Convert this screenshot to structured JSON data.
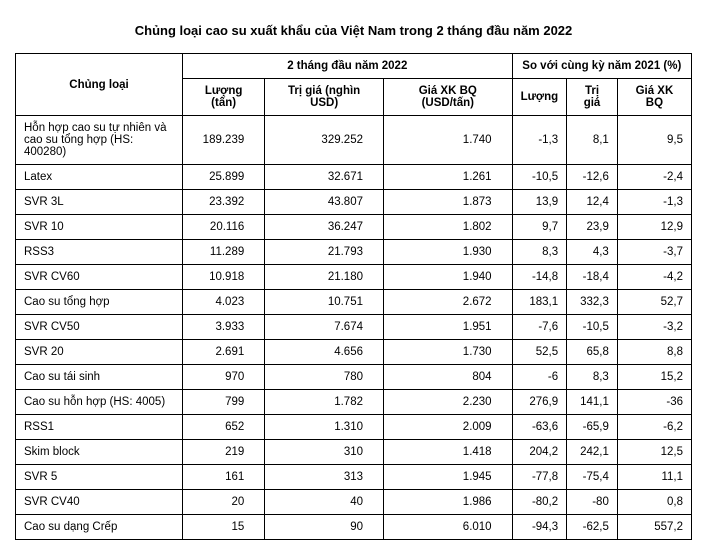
{
  "title": "Chủng loại cao su xuất khẩu của Việt Nam trong 2 tháng đầu năm 2022",
  "headerGroup1": "2 tháng đầu năm 2022",
  "headerGroup2": "So với cùng kỳ năm 2021 (%)",
  "colCategory": "Chủng loại",
  "colQty": "Lượng (tấn)",
  "colValue": "Trị giá (nghìn USD)",
  "colPrice": "Giá XK BQ (USD/tấn)",
  "colQty2": "Lượng",
  "colValue2": "Trị giá",
  "colPrice2": "Giá XK BQ",
  "rows": [
    {
      "name": "Hỗn hợp cao su tự nhiên và cao su tổng hợp (HS: 400280)",
      "qty": "189.239",
      "value": "329.252",
      "price": "1.740",
      "dQty": "-1,3",
      "dValue": "8,1",
      "dPrice": "9,5"
    },
    {
      "name": "Latex",
      "qty": "25.899",
      "value": "32.671",
      "price": "1.261",
      "dQty": "-10,5",
      "dValue": "-12,6",
      "dPrice": "-2,4"
    },
    {
      "name": "SVR 3L",
      "qty": "23.392",
      "value": "43.807",
      "price": "1.873",
      "dQty": "13,9",
      "dValue": "12,4",
      "dPrice": "-1,3"
    },
    {
      "name": "SVR 10",
      "qty": "20.116",
      "value": "36.247",
      "price": "1.802",
      "dQty": "9,7",
      "dValue": "23,9",
      "dPrice": "12,9"
    },
    {
      "name": "RSS3",
      "qty": "11.289",
      "value": "21.793",
      "price": "1.930",
      "dQty": "8,3",
      "dValue": "4,3",
      "dPrice": "-3,7"
    },
    {
      "name": "SVR CV60",
      "qty": "10.918",
      "value": "21.180",
      "price": "1.940",
      "dQty": "-14,8",
      "dValue": "-18,4",
      "dPrice": "-4,2"
    },
    {
      "name": "Cao su tổng hợp",
      "qty": "4.023",
      "value": "10.751",
      "price": "2.672",
      "dQty": "183,1",
      "dValue": "332,3",
      "dPrice": "52,7"
    },
    {
      "name": "SVR CV50",
      "qty": "3.933",
      "value": "7.674",
      "price": "1.951",
      "dQty": "-7,6",
      "dValue": "-10,5",
      "dPrice": "-3,2"
    },
    {
      "name": "SVR 20",
      "qty": "2.691",
      "value": "4.656",
      "price": "1.730",
      "dQty": "52,5",
      "dValue": "65,8",
      "dPrice": "8,8"
    },
    {
      "name": "Cao su tái sinh",
      "qty": "970",
      "value": "780",
      "price": "804",
      "dQty": "-6",
      "dValue": "8,3",
      "dPrice": "15,2"
    },
    {
      "name": "Cao su hỗn hợp (HS: 4005)",
      "qty": "799",
      "value": "1.782",
      "price": "2.230",
      "dQty": "276,9",
      "dValue": "141,1",
      "dPrice": "-36"
    },
    {
      "name": "RSS1",
      "qty": "652",
      "value": "1.310",
      "price": "2.009",
      "dQty": "-63,6",
      "dValue": "-65,9",
      "dPrice": "-6,2"
    },
    {
      "name": "Skim block",
      "qty": "219",
      "value": "310",
      "price": "1.418",
      "dQty": "204,2",
      "dValue": "242,1",
      "dPrice": "12,5"
    },
    {
      "name": "SVR 5",
      "qty": "161",
      "value": "313",
      "price": "1.945",
      "dQty": "-77,8",
      "dValue": "-75,4",
      "dPrice": "11,1"
    },
    {
      "name": "SVR CV40",
      "qty": "20",
      "value": "40",
      "price": "1.986",
      "dQty": "-80,2",
      "dValue": "-80",
      "dPrice": "0,8"
    },
    {
      "name": "Cao su dạng Crếp",
      "qty": "15",
      "value": "90",
      "price": "6.010",
      "dQty": "-94,3",
      "dValue": "-62,5",
      "dPrice": "557,2"
    }
  ],
  "style": {
    "type": "table",
    "borderColor": "#000000",
    "background": "#ffffff",
    "textColor": "#000000",
    "titleFontSize": 13,
    "cellFontSize": 11.5,
    "fontFamily": "Arial"
  }
}
